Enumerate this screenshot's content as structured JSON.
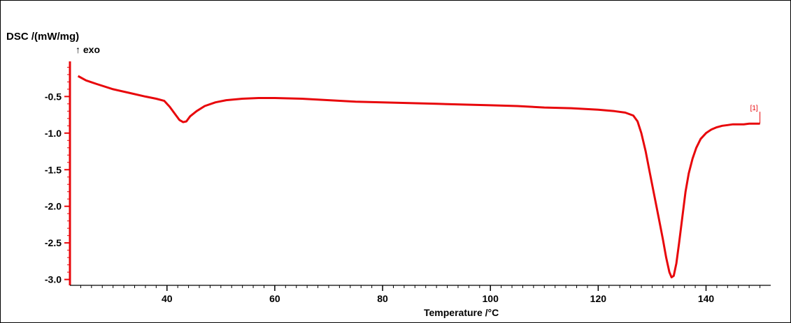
{
  "chart_data": {
    "type": "line",
    "ylabel": "DSC /(mW/mg)",
    "y_direction_note": "↑ exo",
    "xlabel": "Temperature /°C",
    "xlim": [
      22,
      152
    ],
    "ylim": [
      -3.08,
      -0.02
    ],
    "x_ticks": [
      40,
      60,
      80,
      100,
      120,
      140
    ],
    "y_ticks": [
      -0.5,
      -1.0,
      -1.5,
      -2.0,
      -2.5,
      -3.0
    ],
    "x_tick_labels": [
      "40",
      "60",
      "80",
      "100",
      "120",
      "140"
    ],
    "y_tick_labels": [
      "-0.5",
      "-1.0",
      "-1.5",
      "-2.0",
      "-2.5",
      "-3.0"
    ],
    "grid": false,
    "series": [
      {
        "name": "[1]",
        "color": "#e8070b",
        "x": [
          23.5,
          25,
          27,
          30,
          33,
          36,
          38,
          39.5,
          40.5,
          41.5,
          42.3,
          43,
          43.6,
          44.3,
          45.5,
          47,
          49,
          51,
          54,
          57,
          60,
          65,
          70,
          75,
          80,
          85,
          90,
          95,
          100,
          105,
          110,
          115,
          120,
          123,
          125,
          126.5,
          127.3,
          128,
          128.8,
          129.6,
          130.4,
          131.2,
          132,
          132.6,
          133.2,
          133.6,
          134,
          134.5,
          135,
          135.6,
          136.2,
          136.8,
          137.5,
          138.2,
          139,
          140,
          141,
          142,
          143,
          144,
          145,
          146,
          147,
          148,
          149,
          150
        ],
        "y": [
          -0.22,
          -0.28,
          -0.33,
          -0.4,
          -0.45,
          -0.5,
          -0.53,
          -0.56,
          -0.64,
          -0.74,
          -0.82,
          -0.85,
          -0.84,
          -0.77,
          -0.7,
          -0.63,
          -0.58,
          -0.55,
          -0.53,
          -0.52,
          -0.52,
          -0.53,
          -0.55,
          -0.57,
          -0.58,
          -0.59,
          -0.6,
          -0.61,
          -0.62,
          -0.63,
          -0.65,
          -0.66,
          -0.68,
          -0.7,
          -0.72,
          -0.76,
          -0.84,
          -1.0,
          -1.25,
          -1.55,
          -1.85,
          -2.15,
          -2.45,
          -2.7,
          -2.9,
          -2.97,
          -2.95,
          -2.78,
          -2.5,
          -2.15,
          -1.8,
          -1.55,
          -1.35,
          -1.2,
          -1.08,
          -1.0,
          -0.95,
          -0.92,
          -0.9,
          -0.89,
          -0.88,
          -0.88,
          -0.88,
          -0.87,
          -0.87,
          -0.87
        ]
      }
    ]
  },
  "colors": {
    "curve": "#e8070b",
    "left_axis": "#e8070b",
    "bottom_axis": "#000000"
  }
}
